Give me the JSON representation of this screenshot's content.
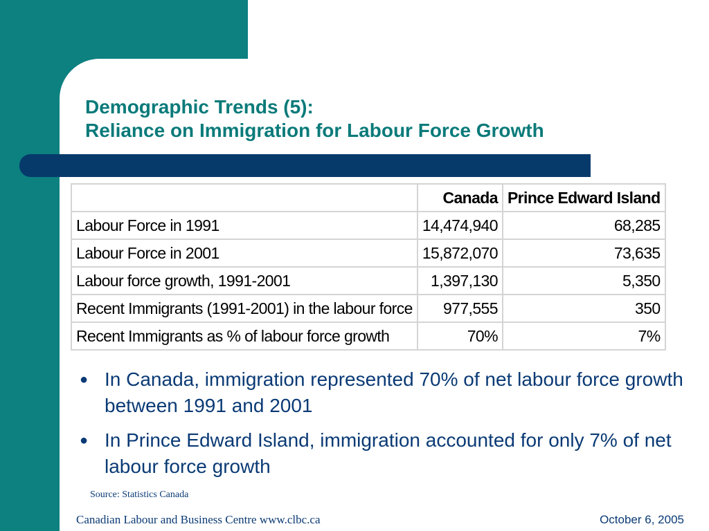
{
  "slide": {
    "title_line1": "Demographic Trends (5):",
    "title_line2": "Reliance on Immigration for Labour Force Growth",
    "table": {
      "headers": [
        "",
        "Canada",
        "Prince Edward Island"
      ],
      "rows": [
        [
          "Labour Force in 1991",
          "14,474,940",
          "68,285"
        ],
        [
          "Labour Force in 2001",
          "15,872,070",
          "73,635"
        ],
        [
          "Labour force growth, 1991-2001",
          "1,397,130",
          "5,350"
        ],
        [
          "Recent Immigrants (1991-2001) in the labour force",
          "977,555",
          "350"
        ],
        [
          "Recent Immigrants as % of labour force growth",
          "70%",
          "7%"
        ]
      ]
    },
    "bullets": [
      "In Canada, immigration represented 70% of net labour force growth between 1991 and 2001",
      "In Prince Edward Island, immigration accounted for only 7% of net labour force growth"
    ],
    "bullet_glyph": "●",
    "source": "Source: Statistics Canada",
    "footer_left": "Canadian Labour and Business Centre www.clbc.ca",
    "footer_right": "October 6, 2005"
  },
  "colors": {
    "teal": "#0d8080",
    "navy_bar": "#063a6b",
    "title": "#0b7a7a",
    "text_blue": "#0a3a75"
  }
}
